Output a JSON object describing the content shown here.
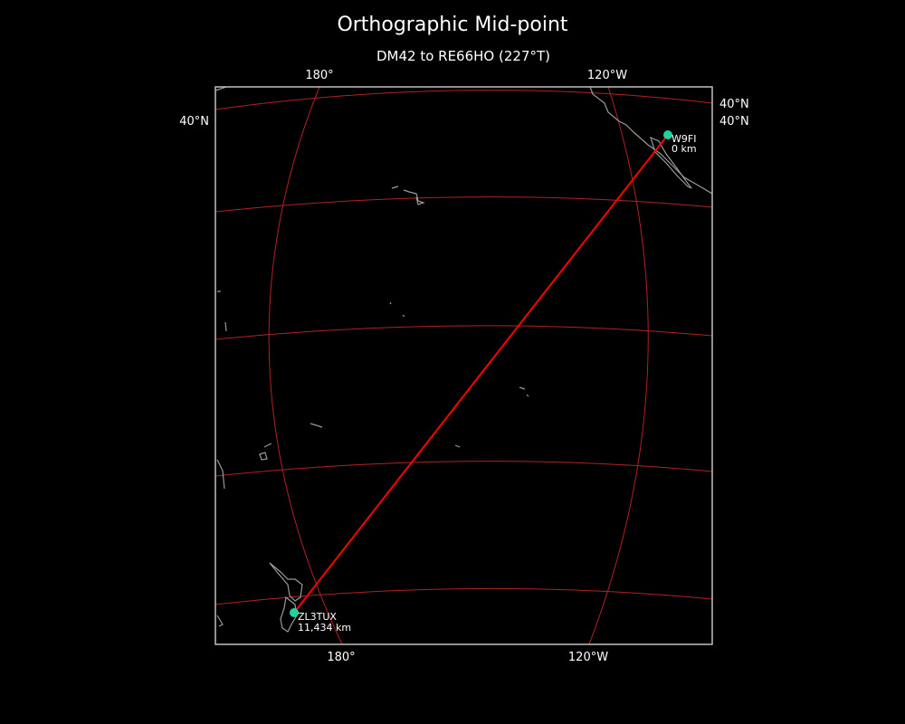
{
  "title": "Orthographic Mid-point",
  "subtitle": "DM42 to RE66HO (227°T)",
  "axis_labels": {
    "top": [
      "180°",
      "120°W"
    ],
    "bottom": [
      "180°",
      "120°W"
    ],
    "left": [
      "40°N"
    ],
    "right": [
      "40°N",
      "40°N"
    ]
  },
  "stations": [
    {
      "call": "W9FI",
      "distance": "0 km",
      "color": "#1dd3a0"
    },
    {
      "call": "ZL3TUX",
      "distance": "11,434 km",
      "color": "#1dd3a0"
    }
  ],
  "colors": {
    "background": "#000000",
    "path": "#ff0000",
    "graticule": "#b22222",
    "coastline": "#9a9a9a",
    "frame": "#c0c0c0"
  }
}
